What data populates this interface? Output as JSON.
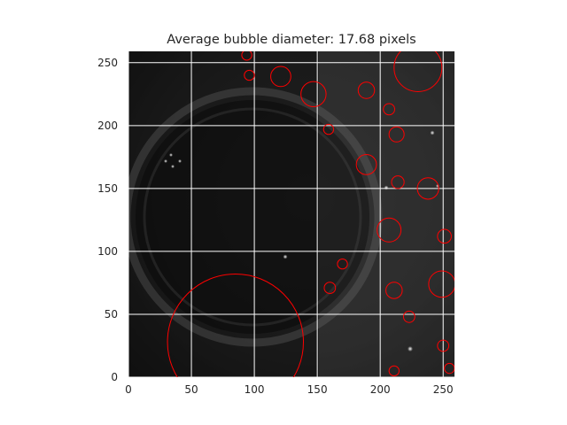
{
  "chart_data": {
    "type": "scatter",
    "title": "Average bubble diameter: 17.68 pixels",
    "xlabel": "",
    "ylabel": "",
    "xlim": [
      0,
      259
    ],
    "ylim": [
      259,
      0
    ],
    "x_ticks": [
      0,
      50,
      100,
      150,
      200,
      250
    ],
    "y_ticks": [
      0,
      50,
      100,
      150,
      200,
      250
    ],
    "grid": true,
    "grid_color": "#ffffff",
    "background": "grayscale microscope image",
    "marker_color": "#ff0000",
    "bubbles": [
      {
        "x": 85,
        "y": 28,
        "d": 108
      },
      {
        "x": 211,
        "y": 5,
        "d": 8
      },
      {
        "x": 255,
        "y": 7,
        "d": 8
      },
      {
        "x": 250,
        "y": 25,
        "d": 9
      },
      {
        "x": 223,
        "y": 48,
        "d": 9
      },
      {
        "x": 160,
        "y": 71,
        "d": 9
      },
      {
        "x": 170,
        "y": 90,
        "d": 8
      },
      {
        "x": 211,
        "y": 69,
        "d": 13
      },
      {
        "x": 249,
        "y": 74,
        "d": 21
      },
      {
        "x": 251,
        "y": 112,
        "d": 11
      },
      {
        "x": 207,
        "y": 117,
        "d": 19
      },
      {
        "x": 238,
        "y": 150,
        "d": 17
      },
      {
        "x": 214,
        "y": 155,
        "d": 10
      },
      {
        "x": 189,
        "y": 169,
        "d": 16
      },
      {
        "x": 213,
        "y": 193,
        "d": 12
      },
      {
        "x": 159,
        "y": 197,
        "d": 8
      },
      {
        "x": 207,
        "y": 213,
        "d": 9
      },
      {
        "x": 147,
        "y": 225,
        "d": 20
      },
      {
        "x": 189,
        "y": 228,
        "d": 13
      },
      {
        "x": 121,
        "y": 239,
        "d": 16
      },
      {
        "x": 96,
        "y": 240,
        "d": 8
      },
      {
        "x": 94,
        "y": 256,
        "d": 8
      },
      {
        "x": 230,
        "y": 246,
        "d": 38
      }
    ]
  }
}
